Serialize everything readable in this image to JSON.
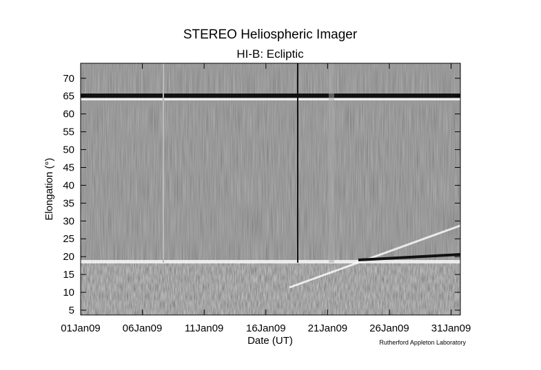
{
  "chart_data": {
    "type": "image",
    "title": "STEREO Heliospheric Imager",
    "subtitle": "HI-B: Ecliptic",
    "xlabel": "Date (UT)",
    "ylabel": "Elongation (°)",
    "credit": "Rutherford Appleton Laboratory",
    "xlim": [
      1,
      31.75
    ],
    "xticks": [
      {
        "value": 1,
        "label": "01Jan09"
      },
      {
        "value": 6,
        "label": "06Jan09"
      },
      {
        "value": 11,
        "label": "11Jan09"
      },
      {
        "value": 16,
        "label": "16Jan09"
      },
      {
        "value": 21,
        "label": "21Jan09"
      },
      {
        "value": 26,
        "label": "26Jan09"
      },
      {
        "value": 31,
        "label": "31Jan09"
      }
    ],
    "ylim": [
      3.65,
      74.2
    ],
    "yticks": [
      5,
      10,
      15,
      20,
      25,
      30,
      35,
      40,
      45,
      50,
      55,
      60,
      65,
      70
    ]
  }
}
